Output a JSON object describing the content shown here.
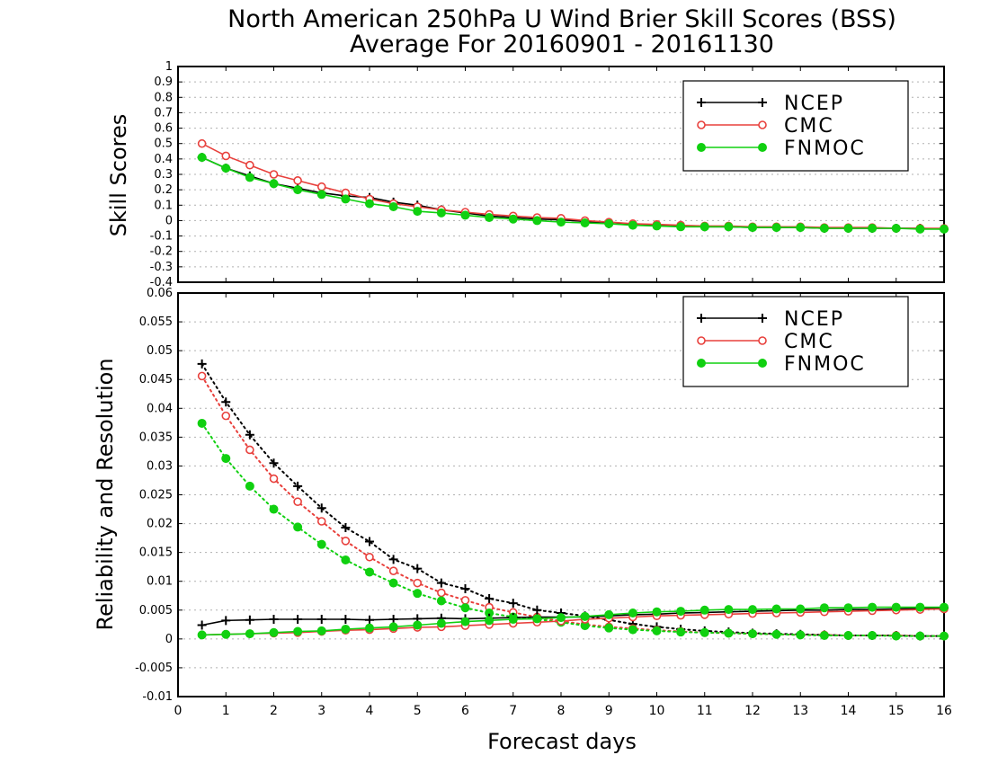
{
  "title_line1": "North American 250hPa U Wind Brier Skill Scores (BSS)",
  "title_line2": "Average For 20160901 - 20161130",
  "xlabel": "Forecast days",
  "colors": {
    "NCEP": "#000000",
    "CMC": "#e8403c",
    "FNMOC": "#10d010",
    "grid": "#b0b0b0"
  },
  "chart_data": [
    {
      "type": "line",
      "ylabel": "Skill Scores",
      "xlim": [
        0,
        16
      ],
      "ylim": [
        -0.4,
        1
      ],
      "xticks": [
        0,
        1,
        2,
        3,
        4,
        5,
        6,
        7,
        8,
        9,
        10,
        11,
        12,
        13,
        14,
        15,
        16
      ],
      "yticks": [
        "1",
        "0.9",
        "0.8",
        "0.7",
        "0.6",
        "0.5",
        "0.4",
        "0.3",
        "0.2",
        "0.1",
        "0",
        "-0.1",
        "-0.2",
        "-0.3",
        "-0.4"
      ],
      "grid": "dotted horizontal",
      "legend": "top-right",
      "x": [
        0.5,
        1,
        1.5,
        2,
        2.5,
        3,
        3.5,
        4,
        4.5,
        5,
        5.5,
        6,
        6.5,
        7,
        7.5,
        8,
        8.5,
        9,
        9.5,
        10,
        10.5,
        11,
        11.5,
        12,
        12.5,
        13,
        13.5,
        14,
        14.5,
        15,
        15.5,
        16
      ],
      "series": [
        {
          "name": "NCEP",
          "marker": "plus",
          "line": "solid",
          "values": [
            0.41,
            0.34,
            0.29,
            0.24,
            0.21,
            0.18,
            0.16,
            0.15,
            0.12,
            0.1,
            0.07,
            0.05,
            0.03,
            0.02,
            0.01,
            0.005,
            -0.005,
            -0.02,
            -0.025,
            -0.03,
            -0.035,
            -0.04,
            -0.04,
            -0.045,
            -0.045,
            -0.045,
            -0.05,
            -0.05,
            -0.05,
            -0.05,
            -0.05,
            -0.055
          ]
        },
        {
          "name": "CMC",
          "marker": "open-circle",
          "line": "solid",
          "values": [
            0.5,
            0.42,
            0.36,
            0.3,
            0.26,
            0.22,
            0.18,
            0.14,
            0.11,
            0.09,
            0.07,
            0.055,
            0.04,
            0.03,
            0.02,
            0.015,
            0.0,
            -0.01,
            -0.02,
            -0.025,
            -0.03,
            -0.035,
            -0.035,
            -0.04,
            -0.04,
            -0.04,
            -0.045,
            -0.045,
            -0.045,
            -0.05,
            -0.05,
            -0.05
          ]
        },
        {
          "name": "FNMOC",
          "marker": "filled-circle",
          "line": "solid",
          "values": [
            0.41,
            0.34,
            0.28,
            0.24,
            0.2,
            0.17,
            0.14,
            0.11,
            0.09,
            0.06,
            0.05,
            0.035,
            0.02,
            0.01,
            0.0,
            -0.01,
            -0.015,
            -0.02,
            -0.03,
            -0.035,
            -0.04,
            -0.04,
            -0.04,
            -0.045,
            -0.045,
            -0.045,
            -0.05,
            -0.05,
            -0.05,
            -0.05,
            -0.055,
            -0.055
          ]
        }
      ]
    },
    {
      "type": "line",
      "ylabel": "Reliability and Resolution",
      "xlim": [
        0,
        16
      ],
      "ylim": [
        -0.01,
        0.06
      ],
      "xticks": [
        0,
        1,
        2,
        3,
        4,
        5,
        6,
        7,
        8,
        9,
        10,
        11,
        12,
        13,
        14,
        15,
        16
      ],
      "yticks": [
        "0.06",
        "0.055",
        "0.05",
        "0.045",
        "0.04",
        "0.035",
        "0.03",
        "0.025",
        "0.02",
        "0.015",
        "0.01",
        "0.005",
        "0",
        "-0.005",
        "-0.01"
      ],
      "grid": "dotted horizontal",
      "legend": "top-right",
      "x": [
        0.5,
        1,
        1.5,
        2,
        2.5,
        3,
        3.5,
        4,
        4.5,
        5,
        5.5,
        6,
        6.5,
        7,
        7.5,
        8,
        8.5,
        9,
        9.5,
        10,
        10.5,
        11,
        11.5,
        12,
        12.5,
        13,
        13.5,
        14,
        14.5,
        15,
        15.5,
        16
      ],
      "series": [
        {
          "name": "NCEP",
          "component": "resolution",
          "marker": "plus",
          "line": "dotted",
          "values": [
            0.0477,
            0.0411,
            0.0354,
            0.0305,
            0.0265,
            0.0227,
            0.0193,
            0.0169,
            0.0138,
            0.0122,
            0.0097,
            0.0087,
            0.007,
            0.0062,
            0.005,
            0.0045,
            0.004,
            0.0033,
            0.0026,
            0.0021,
            0.0017,
            0.0014,
            0.0012,
            0.001,
            0.0009,
            0.0008,
            0.0007,
            0.0006,
            0.0006,
            0.0006,
            0.0005,
            0.0005
          ]
        },
        {
          "name": "CMC",
          "component": "resolution",
          "marker": "open-circle",
          "line": "dotted",
          "values": [
            0.0456,
            0.0387,
            0.0328,
            0.0278,
            0.0238,
            0.0204,
            0.017,
            0.0142,
            0.0118,
            0.0097,
            0.008,
            0.0067,
            0.0055,
            0.0046,
            0.0038,
            0.0031,
            0.0025,
            0.0021,
            0.0018,
            0.0015,
            0.0013,
            0.0011,
            0.001,
            0.0009,
            0.0008,
            0.0007,
            0.0007,
            0.0006,
            0.0006,
            0.0006,
            0.0005,
            0.0005
          ]
        },
        {
          "name": "FNMOC",
          "component": "resolution",
          "marker": "filled-circle",
          "line": "dotted",
          "values": [
            0.0374,
            0.0313,
            0.0265,
            0.0225,
            0.0194,
            0.0164,
            0.0137,
            0.0116,
            0.0097,
            0.0079,
            0.0066,
            0.0054,
            0.0045,
            0.0038,
            0.0034,
            0.0029,
            0.0023,
            0.0019,
            0.0016,
            0.0014,
            0.0012,
            0.0011,
            0.001,
            0.0009,
            0.0008,
            0.0007,
            0.0006,
            0.0006,
            0.0006,
            0.0005,
            0.0005,
            0.0005
          ]
        },
        {
          "name": "NCEP",
          "component": "reliability",
          "marker": "plus",
          "line": "solid",
          "values": [
            0.0024,
            0.0032,
            0.0033,
            0.0034,
            0.0034,
            0.0034,
            0.0034,
            0.0033,
            0.0034,
            0.0035,
            0.0036,
            0.0035,
            0.0036,
            0.0037,
            0.0038,
            0.0038,
            0.0038,
            0.004,
            0.0042,
            0.0043,
            0.0045,
            0.0046,
            0.0047,
            0.0048,
            0.0049,
            0.005,
            0.005,
            0.0051,
            0.0051,
            0.0052,
            0.0053,
            0.0054
          ]
        },
        {
          "name": "CMC",
          "component": "reliability",
          "marker": "open-circle",
          "line": "solid",
          "values": [
            0.0007,
            0.0008,
            0.0009,
            0.001,
            0.0011,
            0.0013,
            0.0015,
            0.0016,
            0.0018,
            0.002,
            0.0021,
            0.0023,
            0.0025,
            0.0027,
            0.0029,
            0.0031,
            0.0034,
            0.0036,
            0.0038,
            0.004,
            0.0041,
            0.0042,
            0.0043,
            0.0044,
            0.0045,
            0.0046,
            0.0047,
            0.0048,
            0.0049,
            0.005,
            0.0051,
            0.0052
          ]
        },
        {
          "name": "FNMOC",
          "component": "reliability",
          "marker": "filled-circle",
          "line": "solid",
          "values": [
            0.0007,
            0.0008,
            0.0009,
            0.0011,
            0.0013,
            0.0014,
            0.0017,
            0.0019,
            0.0021,
            0.0024,
            0.0027,
            0.003,
            0.0032,
            0.0034,
            0.0035,
            0.0037,
            0.0039,
            0.0042,
            0.0045,
            0.0047,
            0.0048,
            0.005,
            0.0051,
            0.0051,
            0.0052,
            0.0052,
            0.0054,
            0.0054,
            0.0055,
            0.0055,
            0.0055,
            0.0055
          ]
        }
      ]
    }
  ]
}
